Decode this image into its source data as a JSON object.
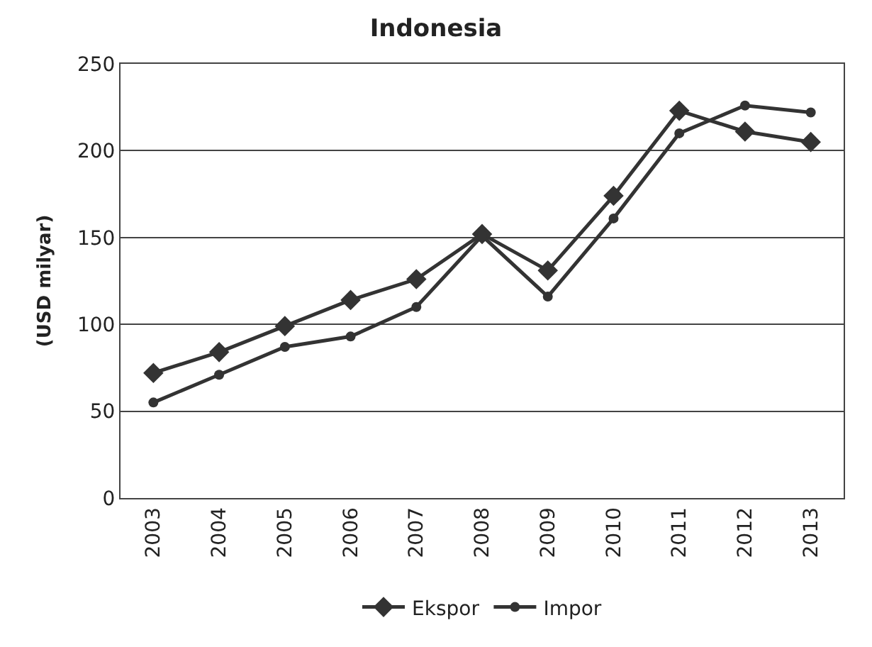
{
  "chart_data": {
    "type": "line",
    "title": "Indonesia",
    "ylabel": "(USD milyar)",
    "categories": [
      "2003",
      "2004",
      "2005",
      "2006",
      "2007",
      "2008",
      "2009",
      "2010",
      "2011",
      "2012",
      "2013"
    ],
    "series": [
      {
        "name": "Ekspor",
        "color": "#333333",
        "marker": "diamond",
        "values": [
          72,
          84,
          99,
          114,
          126,
          152,
          131,
          174,
          223,
          211,
          205
        ]
      },
      {
        "name": "Impor",
        "color": "#333333",
        "marker": "circle",
        "values": [
          55,
          71,
          87,
          93,
          110,
          151,
          116,
          161,
          210,
          226,
          222
        ]
      }
    ],
    "ylim": [
      0,
      250
    ],
    "yticks": [
      0,
      50,
      100,
      150,
      200,
      250
    ],
    "grid": "y",
    "legend": "bottom"
  }
}
